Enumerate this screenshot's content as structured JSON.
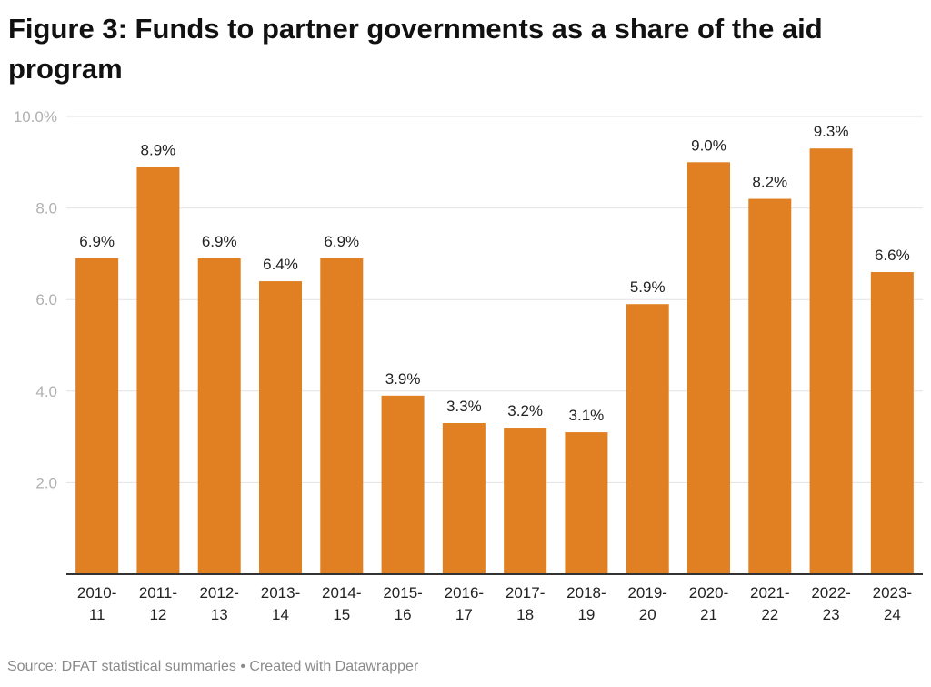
{
  "title": "Figure 3: Funds to partner governments as a share of the aid program",
  "footer": "Source: DFAT statistical summaries • Created with Datawrapper",
  "chart_data": {
    "type": "bar",
    "title": "Figure 3: Funds to partner governments as a share of the aid program",
    "xlabel": "",
    "ylabel": "",
    "ylim": [
      0,
      10
    ],
    "grid": true,
    "bar_color": "#e08022",
    "yticks": [
      {
        "value": 2,
        "label": "2.0"
      },
      {
        "value": 4,
        "label": "4.0"
      },
      {
        "value": 6,
        "label": "6.0"
      },
      {
        "value": 8,
        "label": "8.0"
      },
      {
        "value": 10,
        "label": "10.0%"
      }
    ],
    "categories": [
      [
        "2010-",
        "11"
      ],
      [
        "2011-",
        "12"
      ],
      [
        "2012-",
        "13"
      ],
      [
        "2013-",
        "14"
      ],
      [
        "2014-",
        "15"
      ],
      [
        "2015-",
        "16"
      ],
      [
        "2016-",
        "17"
      ],
      [
        "2017-",
        "18"
      ],
      [
        "2018-",
        "19"
      ],
      [
        "2019-",
        "20"
      ],
      [
        "2020-",
        "21"
      ],
      [
        "2021-",
        "22"
      ],
      [
        "2022-",
        "23"
      ],
      [
        "2023-",
        "24"
      ]
    ],
    "values": [
      6.9,
      8.9,
      6.9,
      6.4,
      6.9,
      3.9,
      3.3,
      3.2,
      3.1,
      5.9,
      9.0,
      8.2,
      9.3,
      6.6
    ],
    "data_labels": [
      "6.9%",
      "8.9%",
      "6.9%",
      "6.4%",
      "6.9%",
      "3.9%",
      "3.3%",
      "3.2%",
      "3.1%",
      "5.9%",
      "9.0%",
      "8.2%",
      "9.3%",
      "6.6%"
    ]
  }
}
